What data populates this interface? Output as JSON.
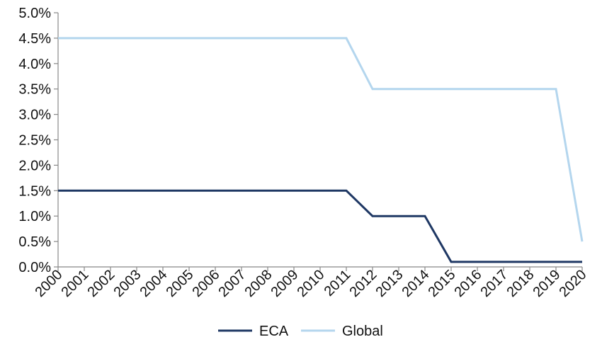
{
  "chart_data": {
    "type": "line",
    "title": "",
    "xlabel": "",
    "ylabel": "",
    "x": [
      "2000",
      "2001",
      "2002",
      "2003",
      "2004",
      "2005",
      "2006",
      "2007",
      "2008",
      "2009",
      "2010",
      "2011",
      "2012",
      "2013",
      "2014",
      "2015",
      "2016",
      "2017",
      "2018",
      "2019",
      "2020"
    ],
    "ylim": [
      0,
      5.0
    ],
    "yticks": [
      "0.0%",
      "0.5%",
      "1.0%",
      "1.5%",
      "2.0%",
      "2.5%",
      "3.0%",
      "3.5%",
      "4.0%",
      "4.5%",
      "5.0%"
    ],
    "grid": false,
    "legend_position": "bottom",
    "series": [
      {
        "name": "ECA",
        "color": "#1f3864",
        "values": [
          1.5,
          1.5,
          1.5,
          1.5,
          1.5,
          1.5,
          1.5,
          1.5,
          1.5,
          1.5,
          1.5,
          1.5,
          1.0,
          1.0,
          1.0,
          0.1,
          0.1,
          0.1,
          0.1,
          0.1,
          0.1
        ]
      },
      {
        "name": "Global",
        "color": "#b4d6ee",
        "values": [
          4.5,
          4.5,
          4.5,
          4.5,
          4.5,
          4.5,
          4.5,
          4.5,
          4.5,
          4.5,
          4.5,
          4.5,
          3.5,
          3.5,
          3.5,
          3.5,
          3.5,
          3.5,
          3.5,
          3.5,
          0.5
        ]
      }
    ]
  }
}
